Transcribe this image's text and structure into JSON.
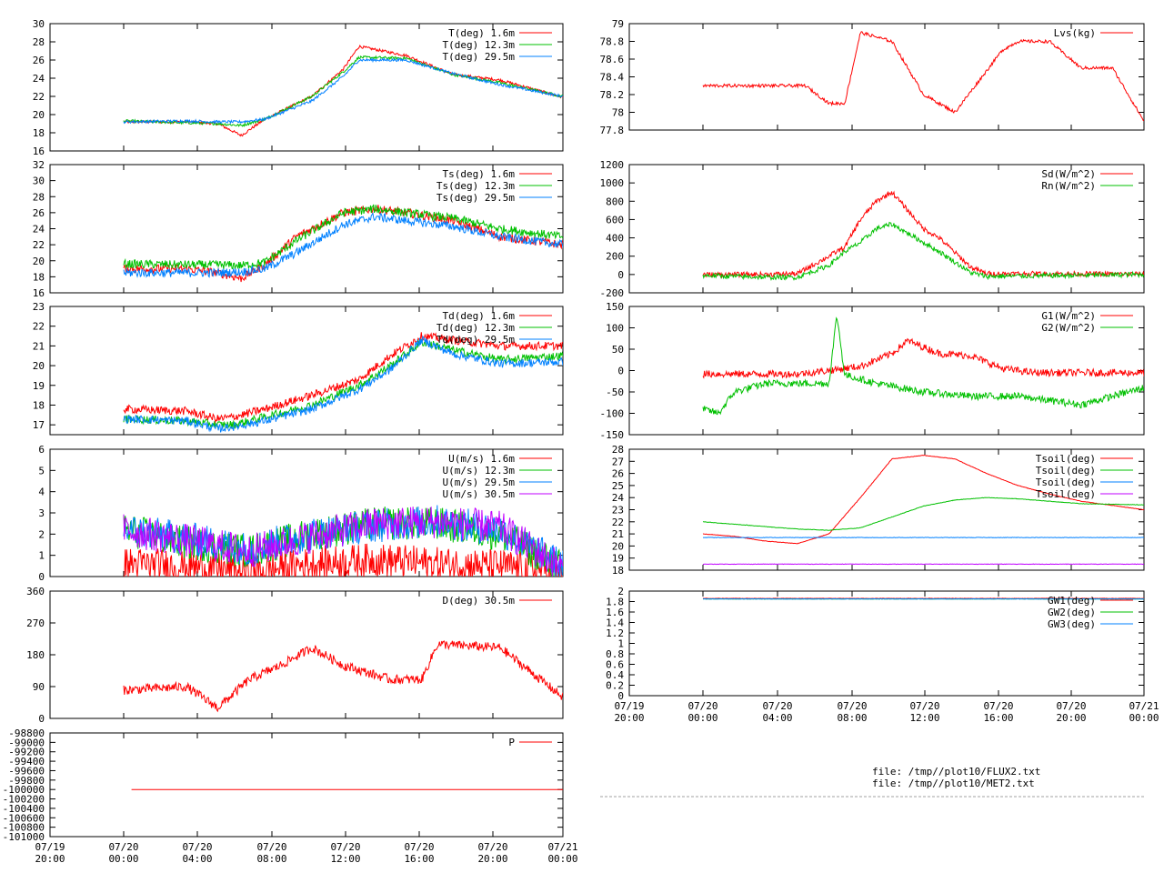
{
  "files": {
    "line1": "file: /tmp//plot10/FLUX2.txt",
    "line2": "file: /tmp//plot10/MET2.txt"
  },
  "colors": {
    "red": "#ff0000",
    "green": "#00c000",
    "blue": "#0080ff",
    "purple": "#c000ff"
  },
  "x_ticks": [
    {
      "date": "07/19",
      "time": "20:00"
    },
    {
      "date": "07/20",
      "time": "00:00"
    },
    {
      "date": "07/20",
      "time": "04:00"
    },
    {
      "date": "07/20",
      "time": "08:00"
    },
    {
      "date": "07/20",
      "time": "12:00"
    },
    {
      "date": "07/20",
      "time": "16:00"
    },
    {
      "date": "07/20",
      "time": "20:00"
    },
    {
      "date": "07/21",
      "time": "00:00"
    }
  ],
  "chart_data": [
    {
      "id": "temp",
      "type": "line",
      "xrange": [
        "07/19 20:00",
        "07/21 00:00"
      ],
      "ylim": [
        16,
        30
      ],
      "y_ticks": [
        "16",
        "18",
        "20",
        "22",
        "24",
        "26",
        "28",
        "30"
      ],
      "series": [
        {
          "name": "T(deg)  1.6m",
          "color": "#ff0000",
          "x": [
            0,
            4,
            6,
            7.5,
            9,
            12,
            14,
            15,
            18,
            21,
            24,
            28
          ],
          "y": [
            19.2,
            19.2,
            19,
            17.7,
            19.5,
            22,
            25,
            27.5,
            26.5,
            24.4,
            23.8,
            21.9
          ]
        },
        {
          "name": "T(deg) 12.3m",
          "color": "#00c000",
          "x": [
            0,
            4,
            6,
            7.5,
            9,
            12,
            14,
            15,
            18,
            21,
            24,
            28
          ],
          "y": [
            19.3,
            19.1,
            19,
            18.8,
            19.5,
            22,
            24.7,
            26.3,
            26.2,
            24.4,
            23.5,
            22
          ]
        },
        {
          "name": "T(deg) 29.5m",
          "color": "#0080ff",
          "x": [
            0,
            4,
            6,
            7.5,
            9,
            12,
            14,
            15,
            18,
            21,
            24,
            28
          ],
          "y": [
            19.2,
            19.3,
            19.2,
            19.2,
            19.5,
            21.5,
            24.2,
            26,
            26,
            24.5,
            23.3,
            22
          ]
        }
      ]
    },
    {
      "id": "sonic_temp",
      "type": "line",
      "xrange": [
        "07/19 20:00",
        "07/21 00:00"
      ],
      "ylim": [
        16,
        32
      ],
      "y_ticks": [
        "16",
        "18",
        "20",
        "22",
        "24",
        "26",
        "28",
        "30",
        "32"
      ],
      "series": [
        {
          "name": "Ts(deg)  1.6m",
          "color": "#ff0000",
          "x": [
            0,
            4,
            6,
            7.5,
            9,
            11,
            14,
            16,
            18,
            21,
            24,
            28
          ],
          "y": [
            19,
            19,
            18.5,
            17.8,
            19.5,
            23,
            26,
            26.5,
            26,
            25,
            23,
            22
          ]
        },
        {
          "name": "Ts(deg) 12.3m",
          "color": "#00c000",
          "x": [
            0,
            4,
            6,
            7.5,
            9,
            11,
            14,
            16,
            18,
            21,
            24,
            28
          ],
          "y": [
            19.6,
            19.5,
            19.5,
            19.4,
            19.8,
            22.5,
            26,
            26.5,
            26,
            25.3,
            24,
            23
          ]
        },
        {
          "name": "Ts(deg) 29.5m",
          "color": "#0080ff",
          "x": [
            0,
            4,
            6,
            7.5,
            9,
            11,
            14,
            16,
            18,
            21,
            24,
            28
          ],
          "y": [
            18.5,
            18.5,
            18.5,
            18.6,
            19,
            21,
            24.5,
            25.5,
            25,
            24.3,
            23,
            22
          ]
        }
      ]
    },
    {
      "id": "dewpoint",
      "type": "line",
      "xrange": [
        "07/19 20:00",
        "07/21 00:00"
      ],
      "ylim": [
        16.5,
        23
      ],
      "y_ticks": [
        "17",
        "18",
        "19",
        "20",
        "21",
        "22",
        "23"
      ],
      "series": [
        {
          "name": "Td(deg)  1.6m",
          "color": "#ff0000",
          "x": [
            0,
            4,
            6,
            7,
            9,
            12,
            15,
            17,
            19,
            21,
            24,
            28
          ],
          "y": [
            17.8,
            17.7,
            17.3,
            17.4,
            17.8,
            18.5,
            19.3,
            20.5,
            21.5,
            21.3,
            21,
            21
          ]
        },
        {
          "name": "Td(deg) 12.3m",
          "color": "#00c000",
          "x": [
            0,
            4,
            6,
            7,
            9,
            12,
            15,
            17,
            19,
            21,
            24,
            28
          ],
          "y": [
            17.3,
            17.2,
            17,
            17,
            17.4,
            18,
            19,
            20,
            21.2,
            20.8,
            20.3,
            20.5
          ]
        },
        {
          "name": "Td(deg) 29.5m",
          "color": "#0080ff",
          "x": [
            0,
            4,
            6,
            7,
            9,
            12,
            15,
            17,
            19,
            21,
            24,
            28
          ],
          "y": [
            17.3,
            17.2,
            16.8,
            16.9,
            17.2,
            17.8,
            18.8,
            19.8,
            21.3,
            20.6,
            20.1,
            20.2
          ]
        }
      ]
    },
    {
      "id": "wind_speed",
      "type": "line",
      "xrange": [
        "07/19 20:00",
        "07/21 00:00"
      ],
      "ylim": [
        0,
        6
      ],
      "y_ticks": [
        "0",
        "1",
        "2",
        "3",
        "4",
        "5",
        "6"
      ],
      "series": [
        {
          "name": "U(m/s)  1.6m",
          "color": "#ff0000",
          "x": [
            0,
            4,
            8,
            12,
            16,
            20,
            24,
            28
          ],
          "y": [
            0.6,
            0.5,
            0.2,
            0.6,
            0.8,
            0.6,
            0.5,
            0.2
          ]
        },
        {
          "name": "U(m/s) 12.3m",
          "color": "#00c000",
          "x": [
            0,
            4,
            8,
            12,
            16,
            20,
            24,
            28
          ],
          "y": [
            2.2,
            1.6,
            1.2,
            2,
            2.5,
            2.5,
            2,
            0.4
          ]
        },
        {
          "name": "U(m/s) 29.5m",
          "color": "#0080ff",
          "x": [
            0,
            4,
            8,
            12,
            16,
            20,
            24,
            28
          ],
          "y": [
            2.2,
            1.8,
            1.3,
            2,
            2.4,
            2.6,
            2.2,
            0.5
          ]
        },
        {
          "name": "U(m/s) 30.5m",
          "color": "#c000ff",
          "x": [
            0,
            4,
            8,
            12,
            16,
            20,
            24,
            28
          ],
          "y": [
            2.2,
            1.7,
            1.2,
            1.9,
            2.5,
            2.6,
            2.3,
            0.4
          ]
        }
      ]
    },
    {
      "id": "wind_dir",
      "type": "line",
      "xrange": [
        "07/19 20:00",
        "07/21 00:00"
      ],
      "ylim": [
        0,
        360
      ],
      "y_ticks": [
        "0",
        "90",
        "180",
        "270",
        "360"
      ],
      "series": [
        {
          "name": "D(deg)  30.5m",
          "color": "#ff0000",
          "x": [
            0,
            2,
            4,
            6,
            8,
            10,
            12,
            14,
            17,
            19,
            20,
            24,
            28
          ],
          "y": [
            80,
            85,
            90,
            30,
            110,
            150,
            200,
            150,
            110,
            110,
            210,
            200,
            60
          ]
        }
      ]
    },
    {
      "id": "pressure",
      "type": "line",
      "xrange": [
        "07/19 20:00",
        "07/21 00:00"
      ],
      "ylim": [
        -101000,
        -98800
      ],
      "y_ticks": [
        "-101000",
        "-100800",
        "-100600",
        "-100400",
        "-100200",
        "-100000",
        "-99800",
        "-99600",
        "-99400",
        "-99200",
        "-99000",
        "-98800"
      ],
      "series": [
        {
          "name": "P",
          "color": "#ff0000",
          "x": [
            0.5,
            28
          ],
          "y": [
            -100000,
            -100000
          ]
        }
      ]
    },
    {
      "id": "lvs",
      "type": "line",
      "xrange": [
        "07/19 20:00",
        "07/21 00:00"
      ],
      "ylim": [
        77.8,
        79
      ],
      "y_ticks": [
        "77.8",
        "78",
        "78.2",
        "78.4",
        "78.6",
        "78.8",
        "79"
      ],
      "series": [
        {
          "name": "Lvs(kg)",
          "color": "#ff0000",
          "x": [
            0,
            3,
            5,
            6.5,
            8,
            9,
            10,
            12,
            14,
            16,
            19,
            20,
            22,
            24,
            26,
            28
          ],
          "y": [
            78.3,
            78.3,
            78.3,
            78.3,
            78.1,
            78.1,
            78.9,
            78.8,
            78.2,
            78.0,
            78.7,
            78.8,
            78.8,
            78.5,
            78.5,
            77.9
          ]
        }
      ]
    },
    {
      "id": "radiation",
      "type": "line",
      "xrange": [
        "07/19 20:00",
        "07/21 00:00"
      ],
      "ylim": [
        -200,
        1200
      ],
      "y_ticks": [
        "-200",
        "0",
        "200",
        "400",
        "600",
        "800",
        "1000",
        "1200"
      ],
      "series": [
        {
          "name": "Sd(W/m^2)",
          "color": "#ff0000",
          "x": [
            0,
            4,
            6,
            8,
            9,
            10,
            11,
            12,
            13,
            14,
            15,
            17,
            18,
            28
          ],
          "y": [
            0,
            0,
            10,
            200,
            300,
            600,
            800,
            900,
            700,
            500,
            400,
            80,
            10,
            5
          ]
        },
        {
          "name": "Rn(W/m^2)",
          "color": "#00c000",
          "x": [
            0,
            4,
            6,
            8,
            9,
            10,
            11,
            12,
            13,
            14,
            15,
            17,
            18,
            28
          ],
          "y": [
            -10,
            -30,
            -30,
            100,
            250,
            350,
            500,
            550,
            450,
            350,
            250,
            20,
            -20,
            0
          ]
        }
      ]
    },
    {
      "id": "soil_flux",
      "type": "line",
      "xrange": [
        "07/19 20:00",
        "07/21 00:00"
      ],
      "ylim": [
        -150,
        150
      ],
      "y_ticks": [
        "-150",
        "-100",
        "-50",
        "0",
        "50",
        "100",
        "150"
      ],
      "series": [
        {
          "name": "G1(W/m^2)",
          "color": "#ff0000",
          "x": [
            0,
            4,
            6,
            8,
            10,
            12,
            13,
            15,
            17,
            19,
            21,
            28
          ],
          "y": [
            -8,
            -8,
            -8,
            0,
            10,
            40,
            70,
            40,
            35,
            5,
            -5,
            -5
          ]
        },
        {
          "name": "G2(W/m^2)",
          "color": "#00c000",
          "x": [
            0,
            1,
            2,
            4,
            6,
            8,
            8.5,
            9,
            11,
            14,
            17,
            20,
            24,
            28
          ],
          "y": [
            -90,
            -100,
            -50,
            -30,
            -30,
            -30,
            130,
            -10,
            -30,
            -50,
            -60,
            -60,
            -80,
            -40
          ]
        }
      ]
    },
    {
      "id": "soil_temp",
      "type": "line",
      "xrange": [
        "07/19 20:00",
        "07/21 00:00"
      ],
      "ylim": [
        18,
        28
      ],
      "y_ticks": [
        "18",
        "19",
        "20",
        "21",
        "22",
        "23",
        "24",
        "25",
        "26",
        "27",
        "28"
      ],
      "series": [
        {
          "name": "Tsoil(deg)",
          "color": "#ff0000",
          "x": [
            0,
            2,
            4,
            6,
            8,
            10,
            12,
            14,
            16,
            18,
            20,
            22,
            24,
            28
          ],
          "y": [
            21,
            20.8,
            20.4,
            20.2,
            21,
            24,
            27.2,
            27.5,
            27.2,
            26,
            25,
            24.3,
            23.7,
            23
          ]
        },
        {
          "name": "Tsoil(deg)",
          "color": "#00c000",
          "x": [
            0,
            2,
            4,
            6,
            8,
            10,
            12,
            14,
            16,
            18,
            20,
            22,
            24,
            28
          ],
          "y": [
            22,
            21.8,
            21.6,
            21.4,
            21.3,
            21.5,
            22.4,
            23.3,
            23.8,
            24,
            23.9,
            23.7,
            23.5,
            23.4
          ]
        },
        {
          "name": "Tsoil(deg)",
          "color": "#0080ff",
          "x": [
            0,
            28
          ],
          "y": [
            20.7,
            20.7
          ]
        },
        {
          "name": "Tsoil(deg)",
          "color": "#c000ff",
          "x": [
            0,
            28
          ],
          "y": [
            18.5,
            18.5
          ]
        }
      ]
    },
    {
      "id": "soil_water",
      "type": "line",
      "xrange": [
        "07/19 20:00",
        "07/21 00:00"
      ],
      "ylim": [
        0,
        2
      ],
      "y_ticks": [
        "0",
        "0.2",
        "0.4",
        "0.6",
        "0.8",
        "1",
        "1.2",
        "1.4",
        "1.6",
        "1.8",
        "2"
      ],
      "series": [
        {
          "name": "GW1(deg)",
          "color": "#ff0000",
          "x": [
            0,
            28
          ],
          "y": [
            1.86,
            1.86
          ]
        },
        {
          "name": "GW2(deg)",
          "color": "#00c000",
          "x": [
            0,
            28
          ],
          "y": [
            1.85,
            1.85
          ]
        },
        {
          "name": "GW3(deg)",
          "color": "#0080ff",
          "x": [
            0,
            28
          ],
          "y": [
            1.85,
            1.85
          ]
        }
      ]
    }
  ]
}
